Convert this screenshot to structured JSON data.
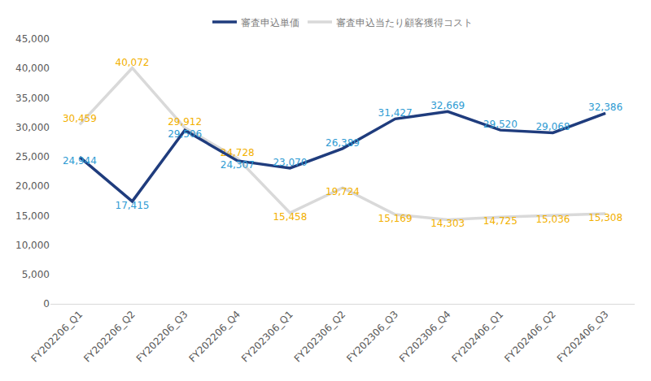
{
  "chart_data": {
    "type": "line",
    "categories": [
      "FY202206_Q1",
      "FY202206_Q2",
      "FY202206_Q3",
      "FY202206_Q4",
      "FY202306_Q1",
      "FY202306_Q2",
      "FY202306_Q3",
      "FY202306_Q4",
      "FY202406_Q1",
      "FY202406_Q2",
      "FY202406_Q3"
    ],
    "series": [
      {
        "name": "審査申込単価",
        "color": "#1f3c7d",
        "values": [
          24944,
          17415,
          29506,
          24307,
          23070,
          26389,
          31427,
          32669,
          29520,
          29068,
          32386
        ],
        "value_labels": [
          "24,944",
          "17,415",
          "29,506",
          "24,307",
          "23,070",
          "26,389",
          "31,427",
          "32,669",
          "29,520",
          "29,068",
          "32,386"
        ]
      },
      {
        "name": "審査申込当たり顧客獲得コスト",
        "color": "#d9d9d9",
        "values": [
          30459,
          40072,
          29912,
          24728,
          15458,
          19724,
          15169,
          14303,
          14725,
          15036,
          15308
        ],
        "value_labels": [
          "30,459",
          "40,072",
          "29,912",
          "24,728",
          "15,458",
          "19,724",
          "15,169",
          "14,303",
          "14,725",
          "15,036",
          "15,308"
        ]
      }
    ],
    "ylim": [
      0,
      45000
    ],
    "yticks": [
      0,
      {
        "value": 5000,
        "label": "5,000"
      },
      {
        "value": 10000,
        "label": "10,000"
      },
      {
        "value": 15000,
        "label": "15,000"
      },
      {
        "value": 20000,
        "label": "20,000"
      },
      {
        "value": 25000,
        "label": "25,000"
      },
      {
        "value": 30000,
        "label": "30,000"
      },
      {
        "value": 35000,
        "label": "35,000"
      },
      {
        "value": 40000,
        "label": "40,000"
      },
      {
        "value": 45000,
        "label": "45,000"
      }
    ],
    "grid": false,
    "legend": "top",
    "data_labels": true
  }
}
